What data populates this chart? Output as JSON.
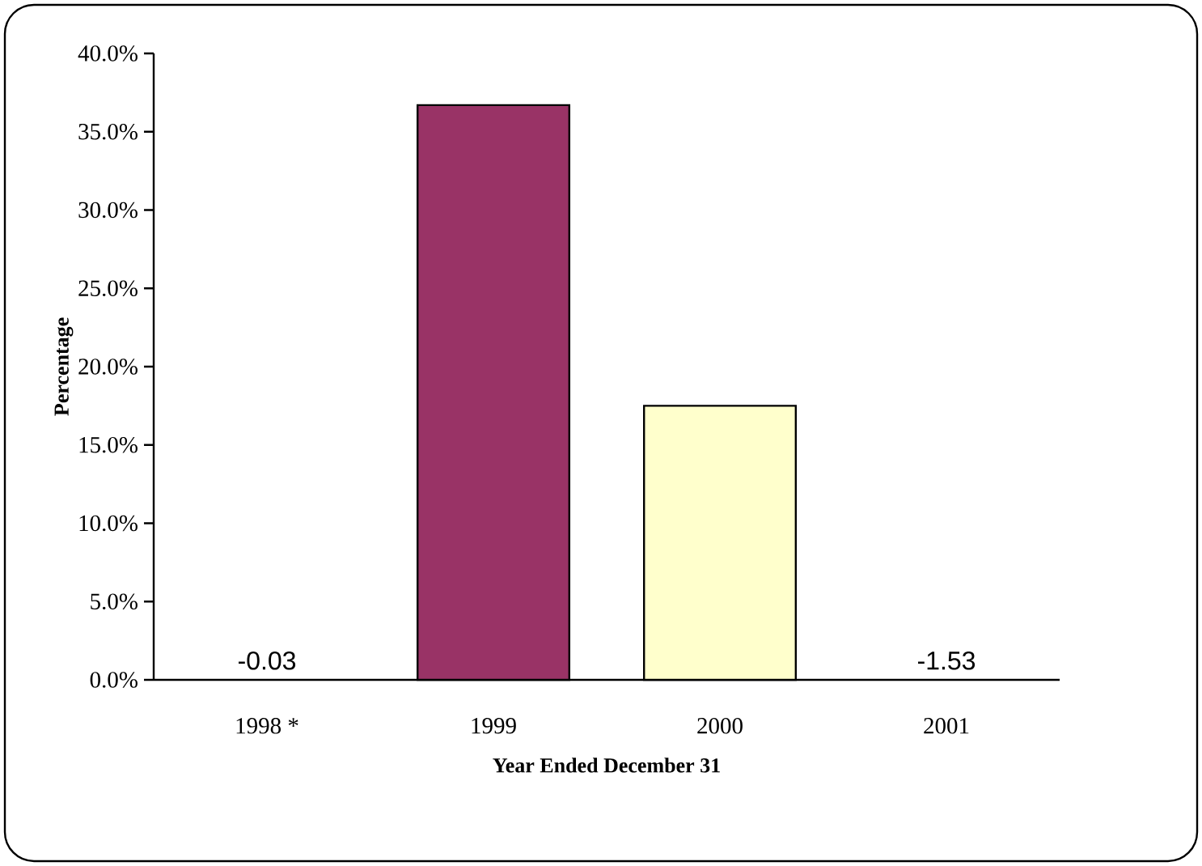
{
  "chart_data": {
    "type": "bar",
    "xlabel": "Year Ended December 31",
    "ylabel": "Percentage",
    "categories": [
      "1998 *",
      "1999",
      "2000",
      "2001"
    ],
    "values": [
      null,
      36.7,
      17.5,
      null
    ],
    "colors": [
      null,
      "#993366",
      "#ffffcc",
      null
    ],
    "value_labels": [
      "-0.03",
      null,
      null,
      "-1.53"
    ],
    "ylim": [
      0,
      40
    ],
    "yticks": [
      {
        "value": 0,
        "label": "0.0%"
      },
      {
        "value": 5,
        "label": "5.0%"
      },
      {
        "value": 10,
        "label": "10.0%"
      },
      {
        "value": 15,
        "label": "15.0%"
      },
      {
        "value": 20,
        "label": "20.0%"
      },
      {
        "value": 25,
        "label": "25.0%"
      },
      {
        "value": 30,
        "label": "30.0%"
      },
      {
        "value": 35,
        "label": "35.0%"
      },
      {
        "value": 40,
        "label": "40.0%"
      }
    ]
  }
}
